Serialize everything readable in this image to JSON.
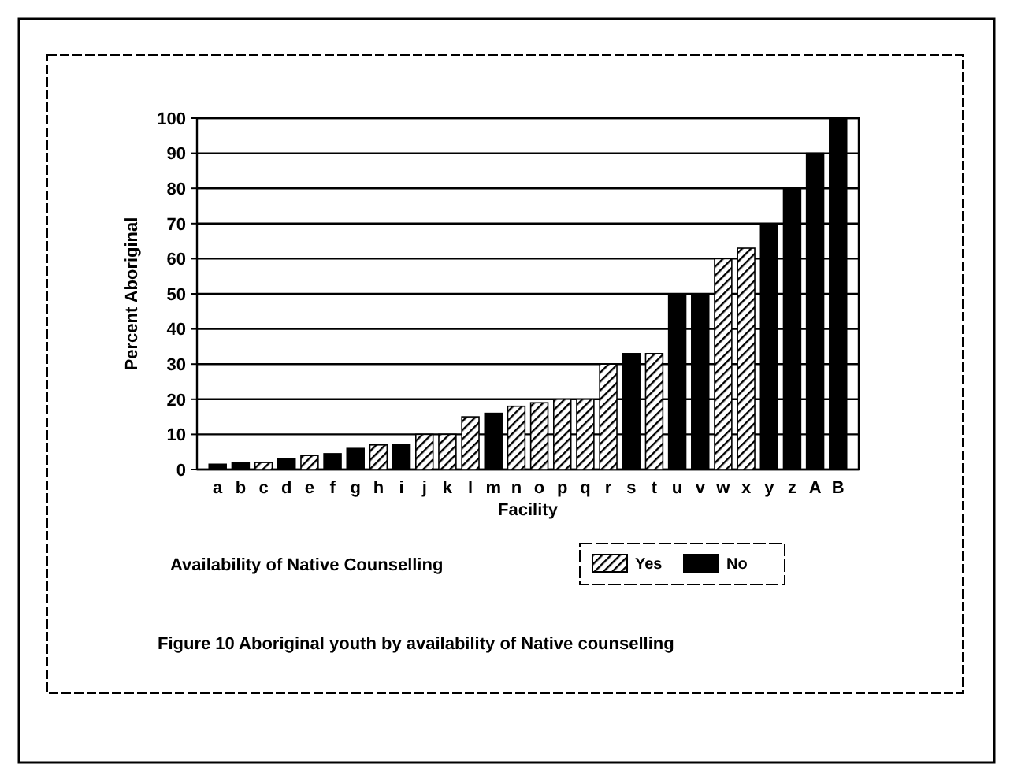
{
  "chart_data": {
    "type": "bar",
    "xlabel": "Facility",
    "ylabel": "Percent Aboriginal",
    "legend_title": "Availability of Native Counselling",
    "categories": [
      "a",
      "b",
      "c",
      "d",
      "e",
      "f",
      "g",
      "h",
      "i",
      "j",
      "k",
      "l",
      "m",
      "n",
      "o",
      "p",
      "q",
      "r",
      "s",
      "t",
      "u",
      "v",
      "w",
      "x",
      "y",
      "z",
      "A",
      "B"
    ],
    "series": [
      {
        "name": "Yes",
        "color": "#000000",
        "values": [
          null,
          null,
          2,
          null,
          4,
          null,
          null,
          7,
          null,
          10,
          10,
          15,
          null,
          18,
          19,
          20,
          20,
          30,
          null,
          33,
          null,
          null,
          60,
          63,
          null,
          null,
          null,
          null
        ]
      },
      {
        "name": "No",
        "color": "#000000",
        "values": [
          1.5,
          2,
          null,
          3,
          null,
          4.5,
          6,
          null,
          7,
          null,
          null,
          null,
          16,
          null,
          null,
          null,
          null,
          null,
          33,
          null,
          50,
          50,
          null,
          null,
          70,
          80,
          90,
          100
        ]
      }
    ],
    "ylim": [
      0,
      100
    ],
    "yticks": [
      0,
      10,
      20,
      30,
      40,
      50,
      60,
      70,
      80,
      90,
      100
    ],
    "grid": "y",
    "legend": "bottom",
    "annotations": [
      "Figure 10  Aboriginal youth by availability of Native counselling"
    ]
  }
}
